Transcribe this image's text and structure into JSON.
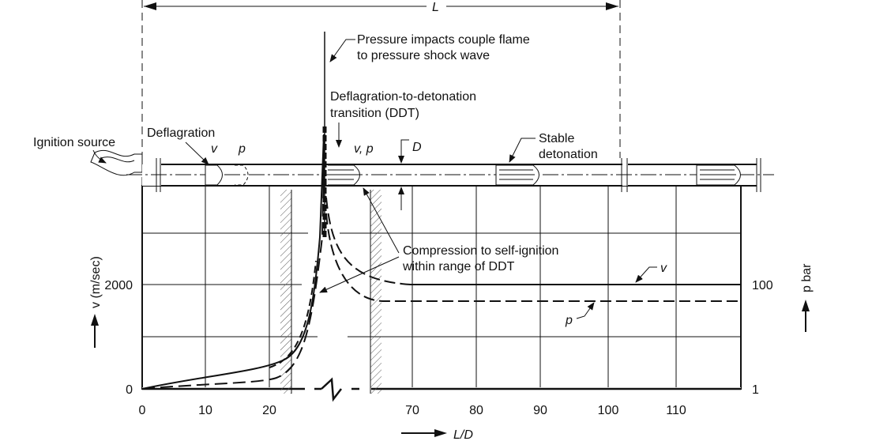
{
  "dimension_label": "L",
  "annotations": {
    "pressure_impacts_1": "Pressure impacts couple flame",
    "pressure_impacts_2": "to pressure shock wave",
    "ddt_1": "Deflagration-to-detonation",
    "ddt_2": "transition (DDT)",
    "ignition": "Ignition source",
    "deflagration": "Deflagration",
    "v": "v",
    "p": "p",
    "vp": "v, p",
    "diameter": "D",
    "stable_1": "Stable",
    "stable_2": "detonation",
    "compression_1": "Compression to self-ignition",
    "compression_2": "within range of DDT",
    "curve_v": "v",
    "curve_p": "p"
  },
  "axes": {
    "y_left_label": "v (m/sec)",
    "y_right_label": "p bar",
    "x_label": "L/D",
    "x_ticks": [
      "0",
      "10",
      "20",
      "70",
      "80",
      "90",
      "100",
      "110"
    ],
    "y_left_ticks": [
      "0",
      "2000"
    ],
    "y_right_ticks": [
      "1",
      "100"
    ]
  }
}
